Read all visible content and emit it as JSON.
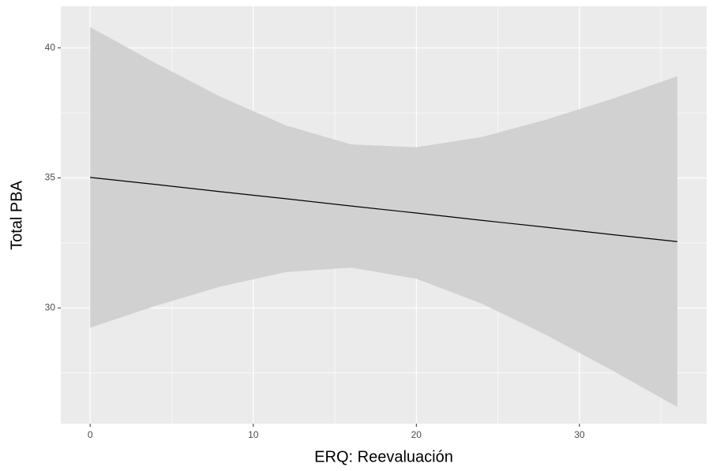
{
  "chart_data": {
    "type": "line",
    "x_label": "ERQ: Reevaluación",
    "y_label": "Total PBA",
    "x": [
      0,
      4,
      8,
      12,
      16,
      20,
      24,
      28,
      32,
      36
    ],
    "values": [
      35.02,
      34.75,
      34.47,
      34.2,
      33.92,
      33.65,
      33.37,
      33.1,
      32.82,
      32.55
    ],
    "upper": [
      40.8,
      39.42,
      38.12,
      37.02,
      36.29,
      36.18,
      36.57,
      37.25,
      38.04,
      38.91
    ],
    "lower": [
      29.24,
      30.08,
      30.82,
      31.38,
      31.55,
      31.12,
      30.17,
      28.95,
      27.6,
      26.19
    ],
    "color": "#000000",
    "band_color": "#d1d1d1",
    "panel_color": "#ebebeb",
    "xlim": [
      -1.8,
      37.8
    ],
    "ylim": [
      25.55,
      41.6
    ],
    "xticks": [
      0,
      10,
      20,
      30
    ],
    "yticks": [
      30,
      35,
      40
    ],
    "minor_xticks": [
      5,
      15,
      25,
      35
    ],
    "minor_yticks": [
      27.5,
      32.5,
      37.5
    ],
    "grid": true
  }
}
